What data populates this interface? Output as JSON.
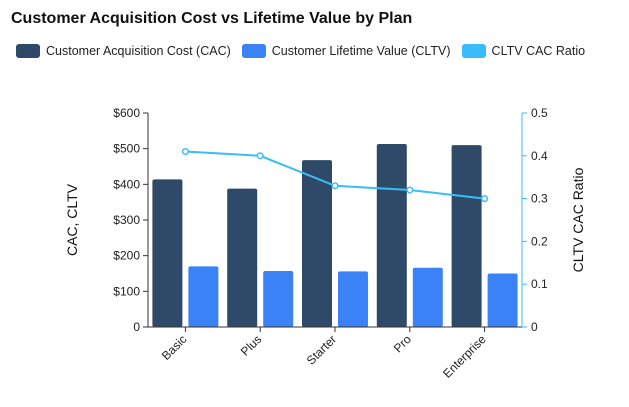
{
  "chart_data": {
    "type": "bar",
    "title": "Customer Acquisition Cost vs Lifetime Value by Plan",
    "categories": [
      "Basic",
      "Plus",
      "Starter",
      "Pro",
      "Enterprise"
    ],
    "series": [
      {
        "name": "Customer Acquisition Cost (CAC)",
        "type": "bar",
        "axis": "left",
        "color": "#2f4a68",
        "values": [
          414,
          388,
          468,
          513,
          510
        ]
      },
      {
        "name": "Customer Lifetime Value (CLTV)",
        "type": "bar",
        "axis": "left",
        "color": "#3b82f6",
        "values": [
          170,
          157,
          156,
          166,
          150
        ]
      },
      {
        "name": "CLTV CAC Ratio",
        "type": "line",
        "axis": "right",
        "color": "#38bdf8",
        "values": [
          0.41,
          0.4,
          0.33,
          0.32,
          0.3
        ]
      }
    ],
    "ylabel": "CAC, CLTV",
    "y2label": "CLTV CAC Ratio",
    "ylim": [
      0,
      600
    ],
    "y2lim": [
      0,
      0.5
    ],
    "yticks": [
      "0",
      "$100",
      "$200",
      "$300",
      "$400",
      "$500",
      "$600"
    ],
    "y2ticks": [
      "0",
      "0.1",
      "0.2",
      "0.3",
      "0.4",
      "0.5"
    ],
    "grid": false,
    "legend_position": "top-left"
  }
}
